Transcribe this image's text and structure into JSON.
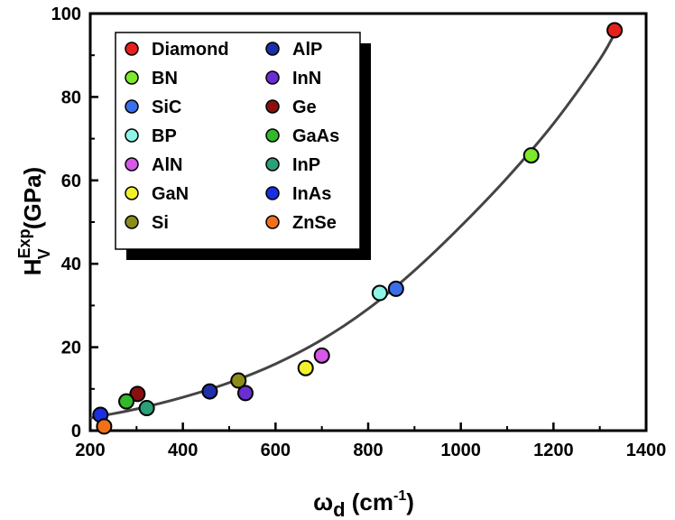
{
  "chart_data": {
    "type": "scatter",
    "title": "",
    "xlabel": {
      "main": "ω",
      "sub": "d",
      "units_open": " (cm",
      "units_sup": "-1",
      "units_close": ")"
    },
    "ylabel": {
      "main": "H",
      "sub": "V",
      "sup": "Exp",
      "units": " (GPa)"
    },
    "xlim": [
      200,
      1400
    ],
    "ylim": [
      0,
      100
    ],
    "x_ticks": [
      "200",
      "400",
      "600",
      "800",
      "1000",
      "1200",
      "1400"
    ],
    "y_ticks": [
      "0",
      "20",
      "40",
      "60",
      "80",
      "100"
    ],
    "legend_position": "top-left",
    "points": [
      {
        "name": "Diamond",
        "x": 1332,
        "y": 96,
        "color": "#e8201c"
      },
      {
        "name": "BN",
        "x": 1152,
        "y": 66,
        "color": "#7ee82a"
      },
      {
        "name": "SiC",
        "x": 860,
        "y": 34,
        "color": "#3a6fe8"
      },
      {
        "name": "BP",
        "x": 825,
        "y": 33,
        "color": "#8ff5e6"
      },
      {
        "name": "AlN",
        "x": 700,
        "y": 18,
        "color": "#d657e8"
      },
      {
        "name": "GaN",
        "x": 665,
        "y": 15,
        "color": "#f2f22a"
      },
      {
        "name": "Si",
        "x": 520,
        "y": 12,
        "color": "#8c8c1a"
      },
      {
        "name": "AlP",
        "x": 458,
        "y": 9.4,
        "color": "#1f2fa8"
      },
      {
        "name": "InN",
        "x": 535,
        "y": 9,
        "color": "#6a2fd1"
      },
      {
        "name": "Ge",
        "x": 302,
        "y": 8.8,
        "color": "#8a1010"
      },
      {
        "name": "GaAs",
        "x": 278,
        "y": 7,
        "color": "#32b82a"
      },
      {
        "name": "InP",
        "x": 322,
        "y": 5.4,
        "color": "#2aa07a"
      },
      {
        "name": "InAs",
        "x": 222,
        "y": 3.8,
        "color": "#1a2fe0"
      },
      {
        "name": "ZnSe",
        "x": 230,
        "y": 1,
        "color": "#f2701a"
      }
    ],
    "legend": [
      [
        "Diamond",
        "BN",
        "SiC",
        "BP",
        "AlN",
        "GaN",
        "Si"
      ],
      [
        "AlP",
        "InN",
        "Ge",
        "GaAs",
        "InP",
        "InAs",
        "ZnSe"
      ]
    ],
    "fit_curve": {
      "type": "exponential-like trend",
      "x": [
        200,
        300,
        400,
        500,
        600,
        700,
        800,
        900,
        1000,
        1100,
        1200,
        1300,
        1340
      ],
      "y": [
        3.0,
        5.2,
        8.0,
        11.5,
        16.0,
        21.8,
        29.2,
        38.4,
        49.0,
        60.6,
        73.6,
        89.0,
        97.0
      ]
    }
  }
}
